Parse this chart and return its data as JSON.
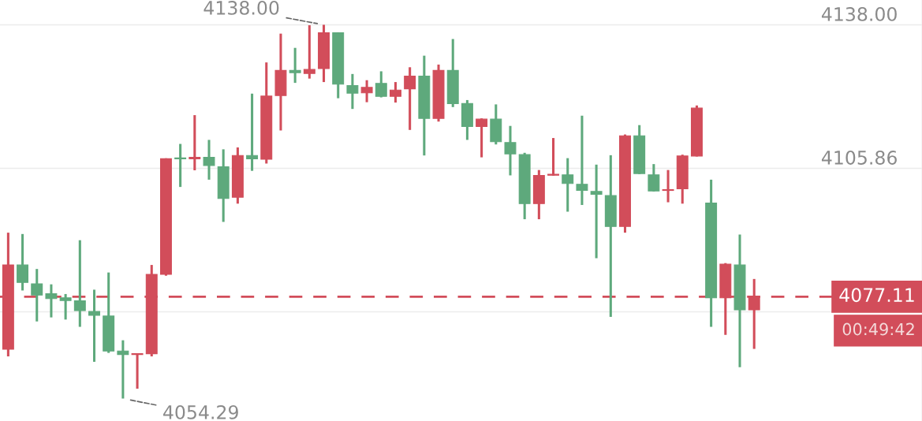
{
  "chart_data": {
    "type": "candlestick",
    "categories": [
      null,
      null,
      null,
      null,
      null,
      null,
      null,
      null,
      null,
      null,
      null,
      null,
      null,
      null,
      null,
      null,
      null,
      null,
      null,
      null,
      null,
      null,
      null,
      null,
      null,
      null,
      null,
      null,
      null,
      null,
      null,
      null,
      null,
      null,
      null,
      null,
      null,
      null,
      null,
      null,
      null,
      null,
      null,
      null,
      null,
      null,
      null,
      null,
      null,
      null,
      null,
      null,
      null
    ],
    "ohlc": [
      [
        4065.35,
        4091.44,
        4063.73,
        4084.21
      ],
      [
        4084.21,
        4091.14,
        4078.49,
        4080.29
      ],
      [
        4079.99,
        4083.31,
        4071.56,
        4077.46
      ],
      [
        4077.76,
        4079.87,
        4072.46,
        4076.68
      ],
      [
        4076.86,
        4077.7,
        4071.98,
        4076.25
      ],
      [
        4076.19,
        4089.75,
        4070.35,
        4073.97
      ],
      [
        4073.79,
        4078.67,
        4062.52,
        4072.94
      ],
      [
        4072.76,
        4082.52,
        4064.51,
        4064.93
      ],
      [
        4064.93,
        4067.34,
        4054.29,
        4064.15
      ],
      [
        4064.15,
        4064.35,
        4056.5,
        4064.35
      ],
      [
        4064.33,
        4084.21,
        4063.73,
        4082.1
      ],
      [
        4082.1,
        4108.1,
        4081.8,
        4108.0
      ],
      [
        4108.2,
        4111.32,
        4101.68,
        4108.0
      ],
      [
        4108.0,
        4117.76,
        4105.41,
        4108.3
      ],
      [
        4108.31,
        4112.22,
        4103.31,
        4106.5
      ],
      [
        4106.2,
        4110.11,
        4093.85,
        4099.09
      ],
      [
        4099.39,
        4110.53,
        4097.94,
        4108.73
      ],
      [
        4108.73,
        4122.58,
        4105.29,
        4108.0
      ],
      [
        4107.88,
        4129.57,
        4106.92,
        4122.03
      ],
      [
        4122.16,
        4136.02,
        4114.33,
        4127.76
      ],
      [
        4127.76,
        4132.83,
        4124.99,
        4127.28
      ],
      [
        4127.1,
        4137.9,
        4125.95,
        4128.0
      ],
      [
        4128.18,
        4138.0,
        4125.17,
        4136.2
      ],
      [
        4136.2,
        4136.32,
        4121.55,
        4124.69
      ],
      [
        4124.39,
        4126.98,
        4119.15,
        4122.7
      ],
      [
        4122.76,
        4125.59,
        4120.66,
        4123.97
      ],
      [
        4124.87,
        4127.58,
        4121.74,
        4121.98
      ],
      [
        4121.98,
        4125.17,
        4120.58,
        4123.37
      ],
      [
        4123.67,
        4128.49,
        4114.45,
        4126.5
      ],
      [
        4126.5,
        4131.08,
        4108.73,
        4117.04
      ],
      [
        4117.04,
        4129.09,
        4116.32,
        4127.76
      ],
      [
        4127.76,
        4134.81,
        4119.57,
        4120.35
      ],
      [
        4120.35,
        4121.14,
        4112.22,
        4115.23
      ],
      [
        4115.23,
        4117.04,
        4108.31,
        4116.86
      ],
      [
        4116.86,
        4120.17,
        4111.2,
        4111.8
      ],
      [
        4111.62,
        4115.35,
        4104.27,
        4109.09
      ],
      [
        4108.91,
        4109.33,
        4094.45,
        4097.94
      ],
      [
        4097.94,
        4105.47,
        4094.45,
        4104.27
      ],
      [
        4104.3,
        4112.64,
        4104.2,
        4104.5
      ],
      [
        4104.39,
        4108.13,
        4096.14,
        4102.46
      ],
      [
        4102.28,
        4117.64,
        4097.64,
        4100.9
      ],
      [
        4100.66,
        4106.68,
        4085.72,
        4100.05
      ],
      [
        4099.75,
        4108.79,
        4072.58,
        4092.82
      ],
      [
        4092.82,
        4113.43,
        4091.44,
        4113.13
      ],
      [
        4113.13,
        4115.53,
        4104.57,
        4104.69
      ],
      [
        4104.39,
        4106.8,
        4100.66,
        4100.78
      ],
      [
        4100.9,
        4105.47,
        4098.25,
        4101.08
      ],
      [
        4101.26,
        4108.91,
        4097.94,
        4108.61
      ],
      [
        4108.61,
        4119.93,
        4108.5,
        4119.33
      ],
      [
        4098.06,
        4103.31,
        4070.35,
        4076.86
      ],
      [
        4076.86,
        4084.63,
        4068.55,
        4084.39
      ],
      [
        4084.21,
        4091.02,
        4061.31,
        4074.15
      ],
      [
        4074.15,
        4081.07,
        4065.41,
        4077.11
      ]
    ],
    "colors": [
      "#d24d5a",
      "#5ea97c",
      "#5ea97c",
      "#5ea97c",
      "#5ea97c",
      "#5ea97c",
      "#5ea97c",
      "#5ea97c",
      "#5ea97c",
      "#d24d5a",
      "#d24d5a",
      "#d24d5a",
      "#5ea97c",
      "#d24d5a",
      "#5ea97c",
      "#5ea97c",
      "#d24d5a",
      "#5ea97c",
      "#d24d5a",
      "#d24d5a",
      "#5ea97c",
      "#d24d5a",
      "#d24d5a",
      "#5ea97c",
      "#5ea97c",
      "#d24d5a",
      "#5ea97c",
      "#d24d5a",
      "#d24d5a",
      "#5ea97c",
      "#d24d5a",
      "#5ea97c",
      "#5ea97c",
      "#d24d5a",
      "#5ea97c",
      "#5ea97c",
      "#5ea97c",
      "#d24d5a",
      "#d24d5a",
      "#5ea97c",
      "#5ea97c",
      "#5ea97c",
      "#5ea97c",
      "#d24d5a",
      "#5ea97c",
      "#5ea97c",
      "#d24d5a",
      "#d24d5a",
      "#d24d5a",
      "#5ea97c",
      "#d24d5a",
      "#5ea97c",
      "#d24d5a"
    ],
    "ylim": [
      4049.26,
      4143.55
    ],
    "yticks": [
      {
        "value": 4138.0,
        "label": "4138.00"
      },
      {
        "value": 4105.86,
        "label": "4105.86"
      },
      {
        "value": 4073.72,
        "label": null
      }
    ],
    "grid": "y",
    "ref_lines": [
      {
        "axis": "y",
        "value": 4077.11,
        "label": "4077.11",
        "color": "#d24d5a",
        "line_style": "dashed"
      }
    ],
    "annotations": [
      "4138.00",
      "4054.29",
      "00:49:42"
    ]
  }
}
